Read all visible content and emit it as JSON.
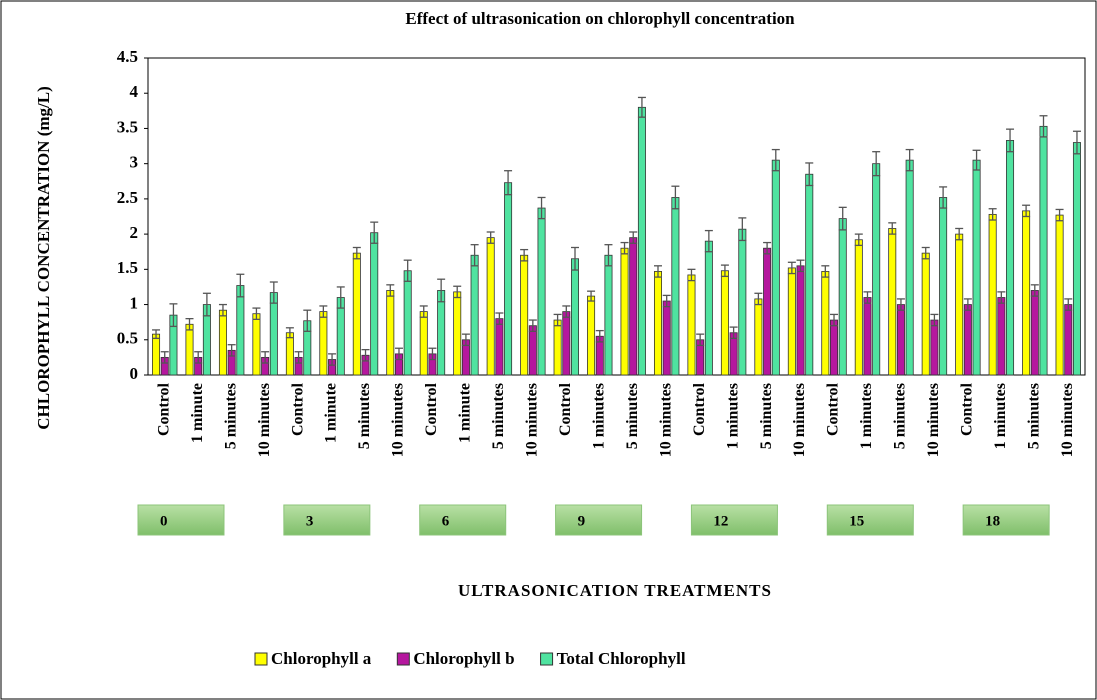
{
  "chart_data": {
    "type": "bar",
    "title": "Effect of ultrasonication on chlorophyll concentration",
    "y_label": "CHLOROPHYLL CONCENTRATION (mg/L)",
    "x_label": "ULTRASONICATION TREATMENTS",
    "categories": [
      "Control",
      "1 minute",
      "5 minutes",
      "10 minutes",
      "Control",
      "1 minute",
      "5 minutes",
      "10 minutes",
      "Control",
      "1 minute",
      "5 minutes",
      "10 minutes",
      "Control",
      "1 minutes",
      "5 minutes",
      "10 minutes",
      "Control",
      "1 minutes",
      "5 minutes",
      "10 minutes",
      "Control",
      "1 minutes",
      "5 minutes",
      "10 minutes",
      "Control",
      "1 minutes",
      "5 minutes",
      "10 minutes"
    ],
    "groups": [
      "0",
      "3",
      "6",
      "9",
      "12",
      "15",
      "18"
    ],
    "series": [
      {
        "name": "Chlorophyll a",
        "color": "#ffff00",
        "values": [
          0.58,
          0.72,
          0.92,
          0.87,
          0.6,
          0.9,
          1.73,
          1.2,
          0.9,
          1.18,
          1.95,
          1.7,
          0.78,
          1.12,
          1.8,
          1.47,
          1.42,
          1.48,
          1.08,
          1.52,
          1.47,
          1.92,
          2.08,
          1.73,
          2.0,
          2.28,
          2.33,
          2.27
        ],
        "errors": [
          0.06,
          0.08,
          0.08,
          0.08,
          0.07,
          0.08,
          0.08,
          0.08,
          0.08,
          0.08,
          0.08,
          0.08,
          0.08,
          0.07,
          0.08,
          0.08,
          0.08,
          0.08,
          0.08,
          0.08,
          0.08,
          0.08,
          0.08,
          0.08,
          0.08,
          0.08,
          0.08,
          0.08
        ]
      },
      {
        "name": "Chlorophyll b",
        "color": "#b5179e",
        "values": [
          0.25,
          0.25,
          0.35,
          0.25,
          0.25,
          0.22,
          0.28,
          0.3,
          0.3,
          0.5,
          0.8,
          0.7,
          0.9,
          0.55,
          1.95,
          1.05,
          0.5,
          0.6,
          1.8,
          1.55,
          0.78,
          1.1,
          1.0,
          0.78,
          1.0,
          1.1,
          1.2,
          1.0
        ],
        "errors": [
          0.08,
          0.08,
          0.08,
          0.08,
          0.08,
          0.08,
          0.08,
          0.08,
          0.08,
          0.08,
          0.08,
          0.08,
          0.08,
          0.08,
          0.08,
          0.08,
          0.08,
          0.08,
          0.08,
          0.08,
          0.08,
          0.08,
          0.08,
          0.08,
          0.08,
          0.08,
          0.08,
          0.08
        ]
      },
      {
        "name": "Total Chlorophyll",
        "color": "#4fe3a0",
        "values": [
          0.85,
          1.0,
          1.27,
          1.17,
          0.77,
          1.1,
          2.02,
          1.48,
          1.2,
          1.7,
          2.73,
          2.37,
          1.65,
          1.7,
          3.8,
          2.52,
          1.9,
          2.07,
          3.05,
          2.85,
          2.22,
          3.0,
          3.05,
          2.52,
          3.05,
          3.33,
          3.53,
          3.3
        ],
        "errors": [
          0.16,
          0.16,
          0.16,
          0.15,
          0.15,
          0.15,
          0.15,
          0.15,
          0.16,
          0.15,
          0.17,
          0.15,
          0.16,
          0.15,
          0.14,
          0.16,
          0.15,
          0.16,
          0.15,
          0.16,
          0.16,
          0.17,
          0.15,
          0.15,
          0.14,
          0.16,
          0.15,
          0.16
        ]
      }
    ],
    "ylim": [
      0,
      4.5
    ],
    "yticks": [
      0,
      0.5,
      1,
      1.5,
      2,
      2.5,
      3,
      3.5,
      4,
      4.5
    ],
    "legend": "bottom"
  }
}
